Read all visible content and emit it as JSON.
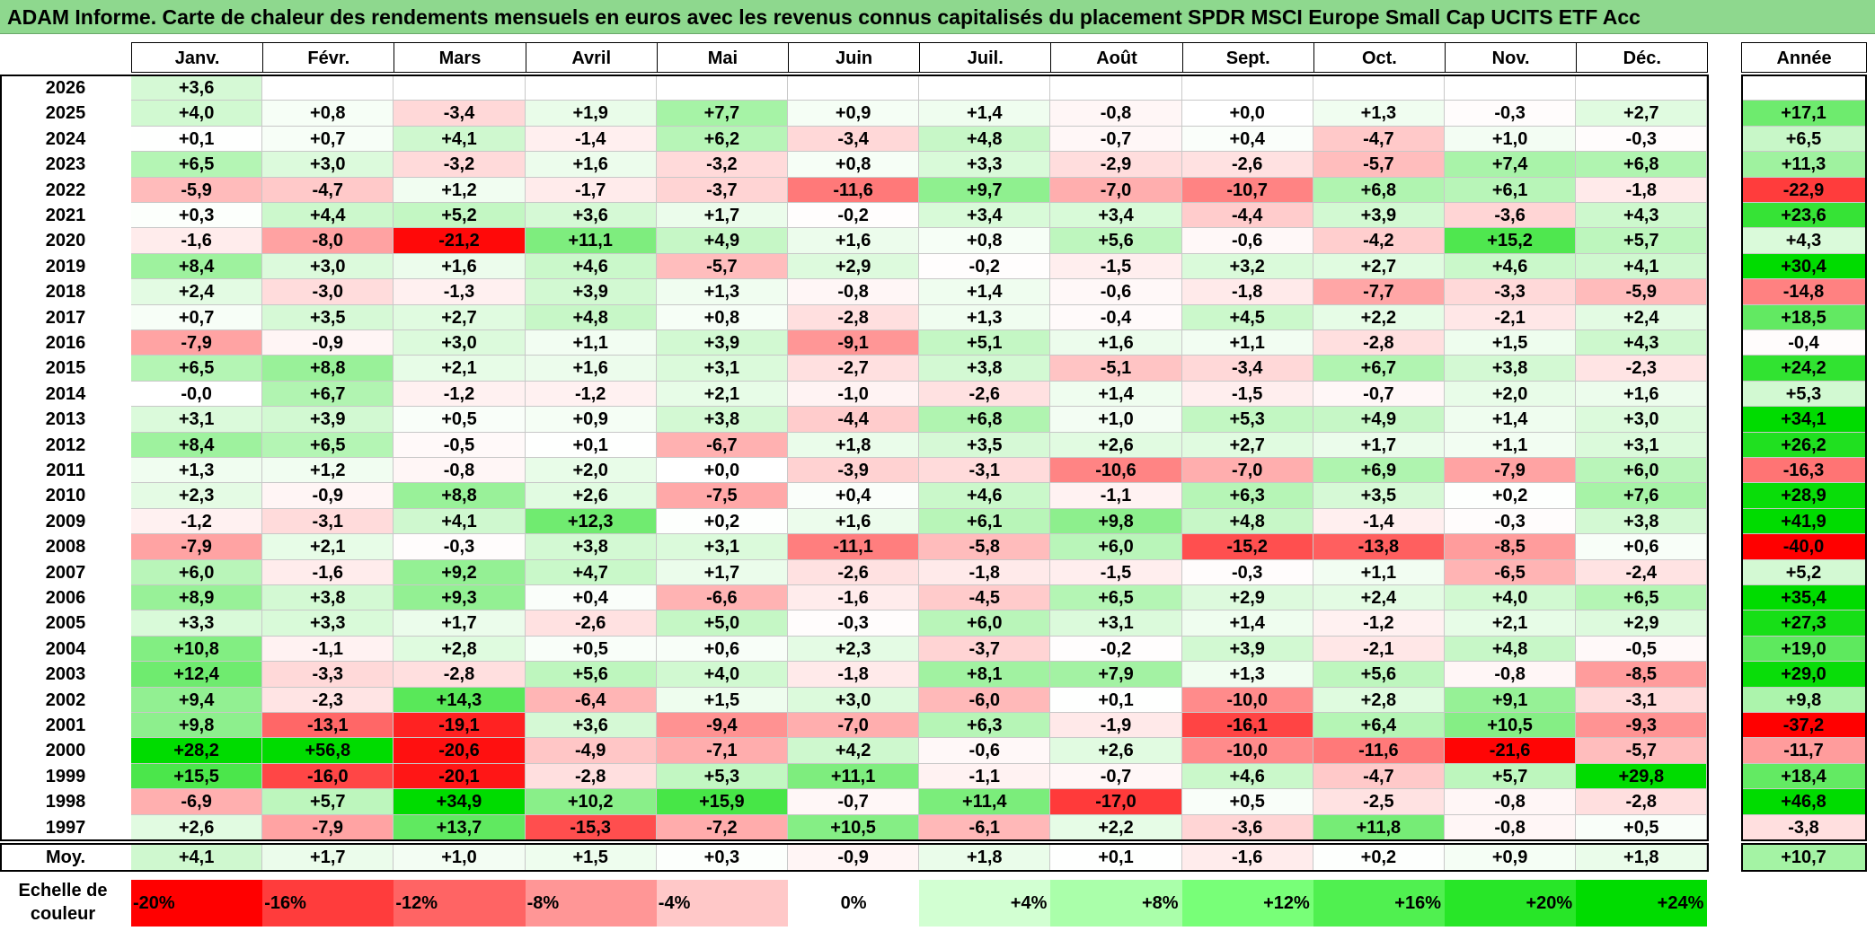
{
  "title": "ADAM Informe. Carte de chaleur des rendements mensuels en euros avec les revenus connus capitalisés du placement SPDR MSCI Europe Small Cap UCITS ETF Acc",
  "chart_data": {
    "type": "heatmap",
    "title": "ADAM Informe. Carte de chaleur des rendements mensuels en euros avec les revenus connus capitalisés du placement SPDR MSCI Europe Small Cap UCITS ETF Acc",
    "columns": [
      "Janv.",
      "Févr.",
      "Mars",
      "Avril",
      "Mai",
      "Juin",
      "Juil.",
      "Août",
      "Sept.",
      "Oct.",
      "Nov.",
      "Déc."
    ],
    "year_column_label": "Année",
    "rows": [
      {
        "year": "2026",
        "months": [
          "+3,6",
          "",
          "",
          "",
          "",
          "",
          "",
          "",
          "",
          "",
          "",
          ""
        ],
        "annual": ""
      },
      {
        "year": "2025",
        "months": [
          "+4,0",
          "+0,8",
          "-3,4",
          "+1,9",
          "+7,7",
          "+0,9",
          "+1,4",
          "-0,8",
          "+0,0",
          "+1,3",
          "-0,3",
          "+2,7"
        ],
        "annual": "+17,1"
      },
      {
        "year": "2024",
        "months": [
          "+0,1",
          "+0,7",
          "+4,1",
          "-1,4",
          "+6,2",
          "-3,4",
          "+4,8",
          "-0,7",
          "+0,4",
          "-4,7",
          "+1,0",
          "-0,3"
        ],
        "annual": "+6,5"
      },
      {
        "year": "2023",
        "months": [
          "+6,5",
          "+3,0",
          "-3,2",
          "+1,6",
          "-3,2",
          "+0,8",
          "+3,3",
          "-2,9",
          "-2,6",
          "-5,7",
          "+7,4",
          "+6,8"
        ],
        "annual": "+11,3"
      },
      {
        "year": "2022",
        "months": [
          "-5,9",
          "-4,7",
          "+1,2",
          "-1,7",
          "-3,7",
          "-11,6",
          "+9,7",
          "-7,0",
          "-10,7",
          "+6,8",
          "+6,1",
          "-1,8"
        ],
        "annual": "-22,9"
      },
      {
        "year": "2021",
        "months": [
          "+0,3",
          "+4,4",
          "+5,2",
          "+3,6",
          "+1,7",
          "-0,2",
          "+3,4",
          "+3,4",
          "-4,4",
          "+3,9",
          "-3,6",
          "+4,3"
        ],
        "annual": "+23,6"
      },
      {
        "year": "2020",
        "months": [
          "-1,6",
          "-8,0",
          "-21,2",
          "+11,1",
          "+4,9",
          "+1,6",
          "+0,8",
          "+5,6",
          "-0,6",
          "-4,2",
          "+15,2",
          "+5,7"
        ],
        "annual": "+4,3"
      },
      {
        "year": "2019",
        "months": [
          "+8,4",
          "+3,0",
          "+1,6",
          "+4,6",
          "-5,7",
          "+2,9",
          "-0,2",
          "-1,5",
          "+3,2",
          "+2,7",
          "+4,6",
          "+4,1"
        ],
        "annual": "+30,4"
      },
      {
        "year": "2018",
        "months": [
          "+2,4",
          "-3,0",
          "-1,3",
          "+3,9",
          "+1,3",
          "-0,8",
          "+1,4",
          "-0,6",
          "-1,8",
          "-7,7",
          "-3,3",
          "-5,9"
        ],
        "annual": "-14,8"
      },
      {
        "year": "2017",
        "months": [
          "+0,7",
          "+3,5",
          "+2,7",
          "+4,8",
          "+0,8",
          "-2,8",
          "+1,3",
          "-0,4",
          "+4,5",
          "+2,2",
          "-2,1",
          "+2,4"
        ],
        "annual": "+18,5"
      },
      {
        "year": "2016",
        "months": [
          "-7,9",
          "-0,9",
          "+3,0",
          "+1,1",
          "+3,9",
          "-9,1",
          "+5,1",
          "+1,6",
          "+1,1",
          "-2,8",
          "+1,5",
          "+4,3"
        ],
        "annual": "-0,4"
      },
      {
        "year": "2015",
        "months": [
          "+6,5",
          "+8,8",
          "+2,1",
          "+1,6",
          "+3,1",
          "-2,7",
          "+3,8",
          "-5,1",
          "-3,4",
          "+6,7",
          "+3,8",
          "-2,3"
        ],
        "annual": "+24,2"
      },
      {
        "year": "2014",
        "months": [
          "-0,0",
          "+6,7",
          "-1,2",
          "-1,2",
          "+2,1",
          "-1,0",
          "-2,6",
          "+1,4",
          "-1,5",
          "-0,7",
          "+2,0",
          "+1,6"
        ],
        "annual": "+5,3"
      },
      {
        "year": "2013",
        "months": [
          "+3,1",
          "+3,9",
          "+0,5",
          "+0,9",
          "+3,8",
          "-4,4",
          "+6,8",
          "+1,0",
          "+5,3",
          "+4,9",
          "+1,4",
          "+3,0"
        ],
        "annual": "+34,1"
      },
      {
        "year": "2012",
        "months": [
          "+8,4",
          "+6,5",
          "-0,5",
          "+0,1",
          "-6,7",
          "+1,8",
          "+3,5",
          "+2,6",
          "+2,7",
          "+1,7",
          "+1,1",
          "+3,1"
        ],
        "annual": "+26,2"
      },
      {
        "year": "2011",
        "months": [
          "+1,3",
          "+1,2",
          "-0,8",
          "+2,0",
          "+0,0",
          "-3,9",
          "-3,1",
          "-10,6",
          "-7,0",
          "+6,9",
          "-7,9",
          "+6,0"
        ],
        "annual": "-16,3"
      },
      {
        "year": "2010",
        "months": [
          "+2,3",
          "-0,9",
          "+8,8",
          "+2,6",
          "-7,5",
          "+0,4",
          "+4,6",
          "-1,1",
          "+6,3",
          "+3,5",
          "+0,2",
          "+7,6"
        ],
        "annual": "+28,9"
      },
      {
        "year": "2009",
        "months": [
          "-1,2",
          "-3,1",
          "+4,1",
          "+12,3",
          "+0,2",
          "+1,6",
          "+6,1",
          "+9,8",
          "+4,8",
          "-1,4",
          "-0,3",
          "+3,8"
        ],
        "annual": "+41,9"
      },
      {
        "year": "2008",
        "months": [
          "-7,9",
          "+2,1",
          "-0,3",
          "+3,8",
          "+3,1",
          "-11,1",
          "-5,8",
          "+6,0",
          "-15,2",
          "-13,8",
          "-8,5",
          "+0,6"
        ],
        "annual": "-40,0"
      },
      {
        "year": "2007",
        "months": [
          "+6,0",
          "-1,6",
          "+9,2",
          "+4,7",
          "+1,7",
          "-2,6",
          "-1,8",
          "-1,5",
          "-0,3",
          "+1,1",
          "-6,5",
          "-2,4"
        ],
        "annual": "+5,2"
      },
      {
        "year": "2006",
        "months": [
          "+8,9",
          "+3,8",
          "+9,3",
          "+0,4",
          "-6,6",
          "-1,6",
          "-4,5",
          "+6,5",
          "+2,9",
          "+2,4",
          "+4,0",
          "+6,5"
        ],
        "annual": "+35,4"
      },
      {
        "year": "2005",
        "months": [
          "+3,3",
          "+3,3",
          "+1,7",
          "-2,6",
          "+5,0",
          "-0,3",
          "+6,0",
          "+3,1",
          "+1,4",
          "-1,2",
          "+2,1",
          "+2,9"
        ],
        "annual": "+27,3"
      },
      {
        "year": "2004",
        "months": [
          "+10,8",
          "-1,1",
          "+2,8",
          "+0,5",
          "+0,6",
          "+2,3",
          "-3,7",
          "-0,2",
          "+3,9",
          "-2,1",
          "+4,8",
          "-0,5"
        ],
        "annual": "+19,0"
      },
      {
        "year": "2003",
        "months": [
          "+12,4",
          "-3,3",
          "-2,8",
          "+5,6",
          "+4,0",
          "-1,8",
          "+8,1",
          "+7,9",
          "+1,3",
          "+5,6",
          "-0,8",
          "-8,5"
        ],
        "annual": "+29,0"
      },
      {
        "year": "2002",
        "months": [
          "+9,4",
          "-2,3",
          "+14,3",
          "-6,4",
          "+1,5",
          "+3,0",
          "-6,0",
          "+0,1",
          "-10,0",
          "+2,8",
          "+9,1",
          "-3,1"
        ],
        "annual": "+9,8"
      },
      {
        "year": "2001",
        "months": [
          "+9,8",
          "-13,1",
          "-19,1",
          "+3,6",
          "-9,4",
          "-7,0",
          "+6,3",
          "-1,9",
          "-16,1",
          "+6,4",
          "+10,5",
          "-9,3"
        ],
        "annual": "-37,2"
      },
      {
        "year": "2000",
        "months": [
          "+28,2",
          "+56,8",
          "-20,6",
          "-4,9",
          "-7,1",
          "+4,2",
          "-0,6",
          "+2,6",
          "-10,0",
          "-11,6",
          "-21,6",
          "-5,7"
        ],
        "annual": "-11,7"
      },
      {
        "year": "1999",
        "months": [
          "+15,5",
          "-16,0",
          "-20,1",
          "-2,8",
          "+5,3",
          "+11,1",
          "-1,1",
          "-0,7",
          "+4,6",
          "-4,7",
          "+5,7",
          "+29,8"
        ],
        "annual": "+18,4"
      },
      {
        "year": "1998",
        "months": [
          "-6,9",
          "+5,7",
          "+34,9",
          "+10,2",
          "+15,9",
          "-0,7",
          "+11,4",
          "-17,0",
          "+0,5",
          "-2,5",
          "-0,8",
          "-2,8"
        ],
        "annual": "+46,8"
      },
      {
        "year": "1997",
        "months": [
          "+2,6",
          "-7,9",
          "+13,7",
          "-15,3",
          "-7,2",
          "+10,5",
          "-6,1",
          "+2,2",
          "-3,6",
          "+11,8",
          "-0,8",
          "+0,5"
        ],
        "annual": "-3,8"
      }
    ],
    "average": {
      "label": "Moy.",
      "months": [
        "+4,1",
        "+1,7",
        "+1,0",
        "+1,5",
        "+0,3",
        "-0,9",
        "+1,8",
        "+0,1",
        "-1,6",
        "+0,2",
        "+0,9",
        "+1,8"
      ],
      "annual": "+10,7"
    },
    "color_scale": {
      "label": "Echelle de couleur",
      "stops": [
        {
          "text": "-20%",
          "color": "#ff0000"
        },
        {
          "text": "-16%",
          "color": "#ff3c3c"
        },
        {
          "text": "-12%",
          "color": "#ff6464"
        },
        {
          "text": "-8%",
          "color": "#ff9696"
        },
        {
          "text": "-4%",
          "color": "#ffc8c8"
        },
        {
          "text": "0%",
          "color": "#ffffff"
        },
        {
          "text": "+4%",
          "color": "#d2ffd2"
        },
        {
          "text": "+8%",
          "color": "#aaffaa"
        },
        {
          "text": "+12%",
          "color": "#78ff78"
        },
        {
          "text": "+16%",
          "color": "#50f050"
        },
        {
          "text": "+20%",
          "color": "#28e628"
        },
        {
          "text": "+24%",
          "color": "#00dc00"
        }
      ]
    }
  },
  "colors": {
    "title_bg": "#8ed88e",
    "negative_max": "#ff0000",
    "positive_max": "#00dc00",
    "neutral": "#ffffff"
  }
}
